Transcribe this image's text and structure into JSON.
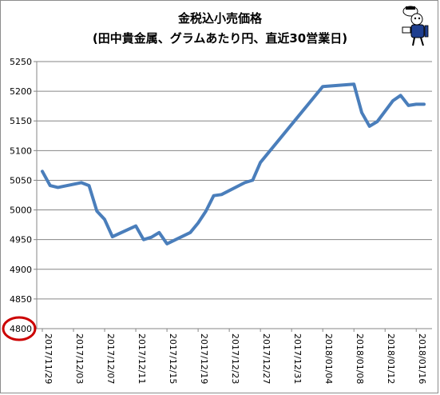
{
  "chart_data": {
    "type": "line",
    "title": "金税込小売価格",
    "subtitle": "(田中貴金属、グラムあたり円、直近30営業日)",
    "xlabel": "",
    "ylabel": "",
    "ylim": [
      4800,
      5250
    ],
    "yticks": [
      4800,
      4850,
      4900,
      4950,
      5000,
      5050,
      5100,
      5150,
      5200,
      5250
    ],
    "grid": "horizontal",
    "legend": "none",
    "line_color": "#4a7ebb",
    "highlight_tick": 4800,
    "highlight_color": "#cc0000",
    "x_tick_labels": [
      {
        "label": "2017/11/29",
        "day": 0
      },
      {
        "label": "2017/12/03",
        "day": 4
      },
      {
        "label": "2017/12/07",
        "day": 8
      },
      {
        "label": "2017/12/11",
        "day": 12
      },
      {
        "label": "2017/12/15",
        "day": 16
      },
      {
        "label": "2017/12/19",
        "day": 20
      },
      {
        "label": "2017/12/23",
        "day": 24
      },
      {
        "label": "2017/12/27",
        "day": 28
      },
      {
        "label": "2017/12/31",
        "day": 32
      },
      {
        "label": "2018/01/04",
        "day": 36
      },
      {
        "label": "2018/01/08",
        "day": 40
      },
      {
        "label": "2018/01/12",
        "day": 44
      },
      {
        "label": "2018/01/16",
        "day": 48
      }
    ],
    "series": [
      {
        "x": [
          0,
          1,
          2,
          5,
          6,
          7,
          8,
          9,
          12,
          13,
          14,
          15,
          16,
          19,
          20,
          21,
          22,
          23,
          26,
          27,
          28,
          36,
          40,
          41,
          42,
          43,
          45,
          46,
          47,
          48,
          49
        ],
        "y": [
          5065,
          5041,
          5038,
          5046,
          5041,
          4998,
          4984,
          4955,
          4973,
          4950,
          4954,
          4962,
          4943,
          4962,
          4978,
          4998,
          5024,
          5026,
          5046,
          5050,
          5080,
          5208,
          5212,
          5164,
          5141,
          5149,
          5184,
          5193,
          5176,
          5178,
          5178
        ]
      }
    ]
  }
}
